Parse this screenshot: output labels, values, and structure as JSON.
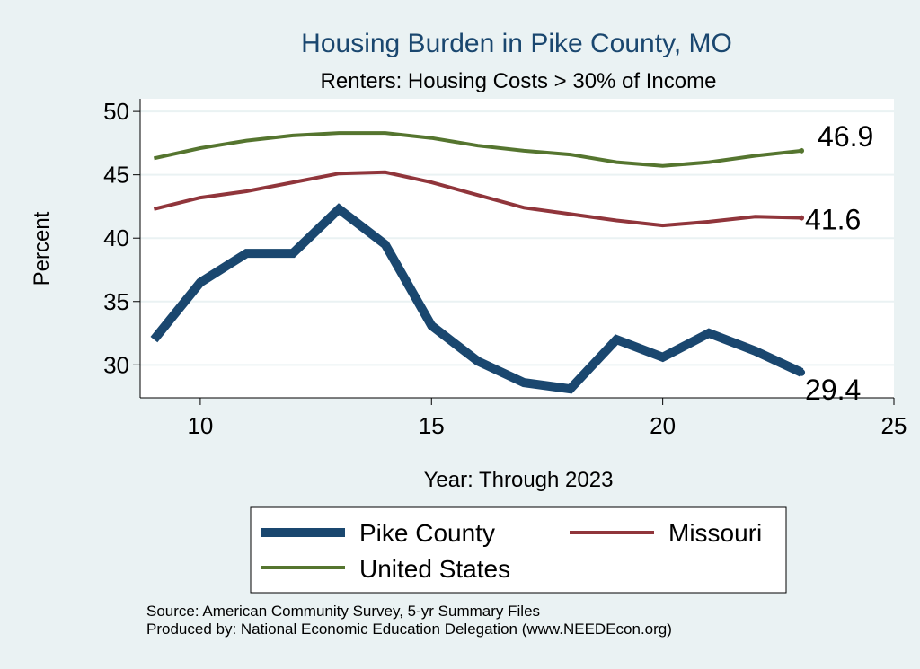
{
  "chart_data": {
    "type": "line",
    "title": "Housing Burden in Pike County, MO",
    "subtitle": "Renters: Housing Costs > 30% of Income",
    "xlabel": "Year: Through 2023",
    "ylabel": "Percent",
    "xlim": [
      8.7,
      25
    ],
    "ylim": [
      27.4,
      51
    ],
    "xticks": [
      10,
      15,
      20,
      25
    ],
    "yticks": [
      30,
      35,
      40,
      45,
      50
    ],
    "grid": true,
    "x": [
      9,
      10,
      11,
      12,
      13,
      14,
      15,
      16,
      17,
      18,
      19,
      20,
      21,
      22,
      23
    ],
    "series": [
      {
        "name": "Pike County",
        "color": "#1a476f",
        "values": [
          32.0,
          36.5,
          38.8,
          38.8,
          42.3,
          39.5,
          33.1,
          30.3,
          28.6,
          28.1,
          32.0,
          30.6,
          32.5,
          31.1,
          29.4
        ],
        "end_label": "29.4"
      },
      {
        "name": "Missouri",
        "color": "#90353b",
        "values": [
          42.3,
          43.2,
          43.7,
          44.4,
          45.1,
          45.2,
          44.4,
          43.4,
          42.4,
          41.9,
          41.4,
          41.0,
          41.3,
          41.7,
          41.6
        ],
        "end_label": "41.6"
      },
      {
        "name": "United States",
        "color": "#55752f",
        "values": [
          46.3,
          47.1,
          47.7,
          48.1,
          48.3,
          48.3,
          47.9,
          47.3,
          46.9,
          46.6,
          46.0,
          45.7,
          46.0,
          46.5,
          46.9
        ],
        "end_label": "46.9"
      }
    ]
  },
  "footer": {
    "source": "Source: American Community Survey, 5-yr Summary Files",
    "produced": "Produced by: National Economic Education Delegation (www.NEEDEcon.org)"
  }
}
